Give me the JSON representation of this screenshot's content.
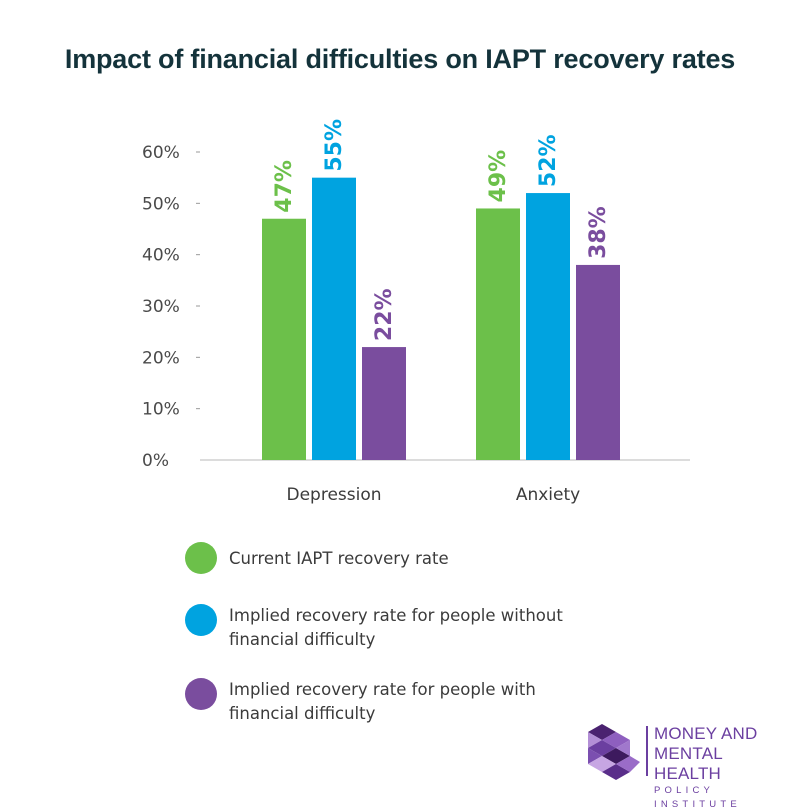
{
  "chart_data": {
    "type": "bar",
    "title": "Impact of financial difficulties on IAPT recovery rates",
    "categories": [
      "Depression",
      "Anxiety"
    ],
    "series": [
      {
        "name": "Current IAPT recovery rate",
        "values": [
          47,
          49
        ],
        "labels": [
          "47%",
          "49%"
        ],
        "color": "#6cc04a"
      },
      {
        "name": "Implied recovery rate for people without financial difficulty",
        "values": [
          55,
          52
        ],
        "labels": [
          "55%",
          "52%"
        ],
        "color": "#00a3e0"
      },
      {
        "name": "Implied recovery rate for people with financial difficulty",
        "values": [
          22,
          38
        ],
        "labels": [
          "22%",
          "38%"
        ],
        "color": "#7a4d9e"
      }
    ],
    "ylim": [
      0,
      60
    ],
    "yticks": [
      0,
      10,
      20,
      30,
      40,
      50,
      60
    ],
    "ytick_labels": [
      "0%",
      "10%",
      "20%",
      "30%",
      "40%",
      "50%",
      "60%"
    ],
    "xlabel": "",
    "ylabel": "",
    "grid": false,
    "legend_position": "bottom-left"
  },
  "legend": {
    "items": [
      {
        "lines": [
          "Current IAPT recovery rate"
        ],
        "color": "#6cc04a"
      },
      {
        "lines": [
          "Implied recovery rate for people without",
          "financial difficulty"
        ],
        "color": "#00a3e0"
      },
      {
        "lines": [
          "Implied recovery rate for people with",
          "financial difficulty"
        ],
        "color": "#7a4d9e"
      }
    ]
  },
  "logo": {
    "line1": "MONEY AND",
    "line2": "MENTAL HEALTH",
    "line3": "POLICY INSTITUTE"
  },
  "colors": {
    "title": "#14333b",
    "axis_text": "#4a4a4a",
    "brand_purple": "#6b3fa0"
  }
}
